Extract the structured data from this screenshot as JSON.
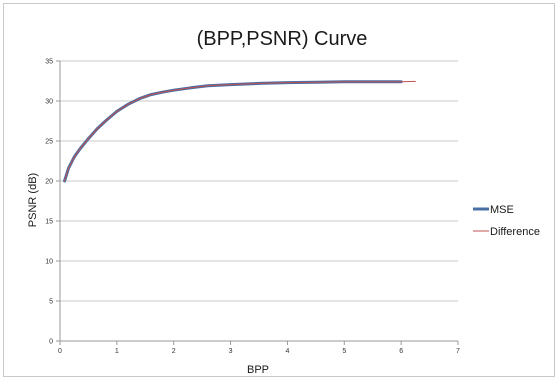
{
  "chart_data": {
    "type": "line",
    "title": "(BPP,PSNR) Curve",
    "xlabel": "BPP",
    "ylabel": "PSNR (dB)",
    "xlim": [
      0,
      7
    ],
    "ylim": [
      0,
      35
    ],
    "x_ticks": [
      "0",
      "1",
      "2",
      "3",
      "4",
      "5",
      "6",
      "7"
    ],
    "y_ticks": [
      "0",
      "5",
      "10",
      "15",
      "20",
      "25",
      "30",
      "35"
    ],
    "grid": "horizontal",
    "legend_position": "right",
    "series": [
      {
        "name": "MSE",
        "color": "#4a6fa5",
        "x": [
          0.08,
          0.15,
          0.25,
          0.35,
          0.5,
          0.65,
          0.8,
          1.0,
          1.2,
          1.4,
          1.6,
          1.8,
          2.0,
          2.3,
          2.6,
          3.0,
          3.5,
          4.0,
          4.5,
          5.0,
          5.5,
          6.0
        ],
        "y": [
          20.0,
          21.6,
          23.0,
          24.0,
          25.3,
          26.5,
          27.5,
          28.7,
          29.6,
          30.3,
          30.8,
          31.1,
          31.35,
          31.65,
          31.9,
          32.05,
          32.2,
          32.3,
          32.35,
          32.4,
          32.4,
          32.4
        ]
      },
      {
        "name": "Difference",
        "color": "#c0504d",
        "x": [
          0.08,
          0.15,
          0.25,
          0.35,
          0.5,
          0.65,
          0.8,
          1.0,
          1.2,
          1.4,
          1.6,
          1.8,
          2.0,
          2.3,
          2.6,
          3.0,
          3.5,
          4.0,
          4.5,
          5.0,
          5.5,
          6.0,
          6.25
        ],
        "y": [
          20.0,
          21.6,
          23.0,
          24.0,
          25.3,
          26.5,
          27.5,
          28.7,
          29.6,
          30.3,
          30.8,
          31.1,
          31.35,
          31.65,
          31.9,
          32.05,
          32.2,
          32.3,
          32.35,
          32.4,
          32.4,
          32.4,
          32.45
        ]
      }
    ]
  }
}
